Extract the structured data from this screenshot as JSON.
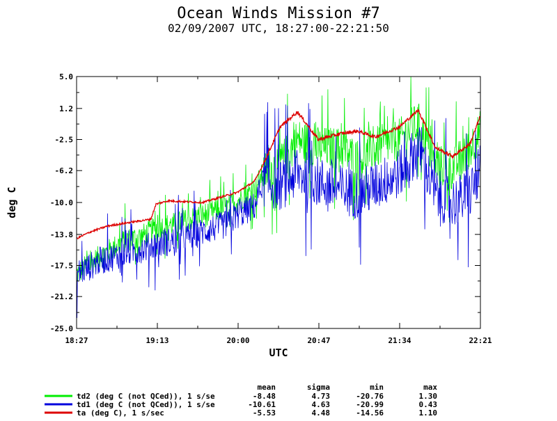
{
  "chart_data": {
    "type": "line",
    "title": "Ocean Winds Mission #7",
    "subtitle": "02/09/2007  UTC, 18:27:00-22:21:50",
    "xlabel": "UTC",
    "ylabel": "deg C",
    "x_ticks": [
      "18:27",
      "19:13",
      "20:00",
      "20:47",
      "21:34",
      "22:21"
    ],
    "y_ticks": [
      "5.0",
      "1.2",
      "-2.5",
      "-6.2",
      "-10.0",
      "-13.8",
      "-17.5",
      "-21.2",
      "-25.0"
    ],
    "ylim": [
      -25.0,
      5.0
    ],
    "xlim": [
      "18:27",
      "22:21"
    ],
    "grid": false,
    "stat_headers": [
      "mean",
      "sigma",
      "min",
      "max"
    ],
    "series": [
      {
        "name": "td2 (deg C (not QCed)), 1 s/se",
        "color": "#00ee00",
        "stats": [
          "-8.48",
          "4.73",
          "-20.76",
          "1.30"
        ],
        "noise": 3.2,
        "x": [
          "18:27",
          "18:40",
          "18:55",
          "19:05",
          "19:13",
          "19:25",
          "19:40",
          "19:55",
          "20:00",
          "20:10",
          "20:15",
          "20:25",
          "20:35",
          "20:47",
          "21:00",
          "21:10",
          "21:20",
          "21:34",
          "21:45",
          "21:55",
          "22:05",
          "22:15",
          "22:21"
        ],
        "values": [
          -18.5,
          -16.5,
          -14.5,
          -14.0,
          -13.0,
          -12.5,
          -11.5,
          -10.5,
          -9.8,
          -8.5,
          -6.5,
          -5.5,
          -2.5,
          -3.5,
          -3.5,
          -5.0,
          -3.5,
          -2.5,
          -0.5,
          -5.5,
          -6.0,
          -3.5,
          -1.5
        ]
      },
      {
        "name": "td1 (deg C (not QCed)), 1 s/se",
        "color": "#0000dd",
        "stats": [
          "-10.61",
          "4.63",
          "-20.99",
          "0.43"
        ],
        "noise": 3.8,
        "x": [
          "18:27",
          "18:40",
          "18:55",
          "19:05",
          "19:13",
          "19:25",
          "19:40",
          "19:55",
          "20:00",
          "20:10",
          "20:15",
          "20:25",
          "20:35",
          "20:47",
          "21:00",
          "21:10",
          "21:20",
          "21:34",
          "21:45",
          "21:55",
          "22:05",
          "22:15",
          "22:21"
        ],
        "values": [
          -18.5,
          -17.0,
          -16.0,
          -15.5,
          -15.0,
          -14.5,
          -13.5,
          -12.5,
          -11.5,
          -10.5,
          -7.5,
          -8.0,
          -6.5,
          -7.5,
          -8.5,
          -9.0,
          -8.0,
          -6.5,
          -3.5,
          -9.0,
          -10.0,
          -9.0,
          -6.0
        ]
      },
      {
        "name": "ta (deg C), 1 s/sec",
        "color": "#dd0000",
        "stats": [
          "-5.53",
          "4.48",
          "-14.56",
          "1.10"
        ],
        "noise": 0.25,
        "x": [
          "18:27",
          "18:35",
          "18:45",
          "19:00",
          "19:10",
          "19:13",
          "19:20",
          "19:40",
          "20:00",
          "20:10",
          "20:15",
          "20:25",
          "20:35",
          "20:47",
          "21:00",
          "21:10",
          "21:20",
          "21:34",
          "21:45",
          "21:55",
          "22:05",
          "22:15",
          "22:21"
        ],
        "values": [
          -14.3,
          -13.5,
          -12.8,
          -12.3,
          -12.0,
          -10.2,
          -9.8,
          -10.0,
          -8.8,
          -7.5,
          -5.5,
          -1.0,
          0.8,
          -2.5,
          -1.8,
          -1.5,
          -2.2,
          -1.0,
          1.0,
          -3.5,
          -4.5,
          -3.0,
          0.3
        ]
      }
    ]
  }
}
